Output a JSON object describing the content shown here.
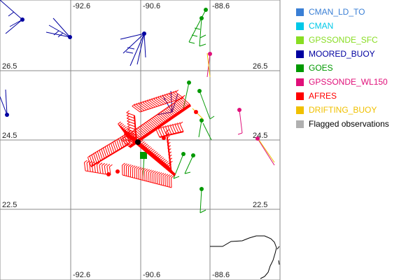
{
  "map": {
    "lon_labels": [
      "-92.6",
      "-90.6",
      "-88.6"
    ],
    "lat_labels": [
      "26.5",
      "24.5",
      "22.5"
    ]
  },
  "legend": [
    {
      "label": "CMAN_LD_TO",
      "color": "#3a7fd5"
    },
    {
      "label": "CMAN",
      "color": "#00c8e8"
    },
    {
      "label": "GPSSONDE_SFC",
      "color": "#88dd22"
    },
    {
      "label": "MOORED_BUOY",
      "color": "#0000a0"
    },
    {
      "label": "GOES",
      "color": "#009900"
    },
    {
      "label": "GPSSONDE_WL150",
      "color": "#e0107a"
    },
    {
      "label": "AFRES",
      "color": "#ff0000"
    },
    {
      "label": "DRIFTING_BUOY",
      "color": "#f0c000"
    },
    {
      "label": "Flagged observations",
      "color": "#b0b0b0"
    }
  ]
}
